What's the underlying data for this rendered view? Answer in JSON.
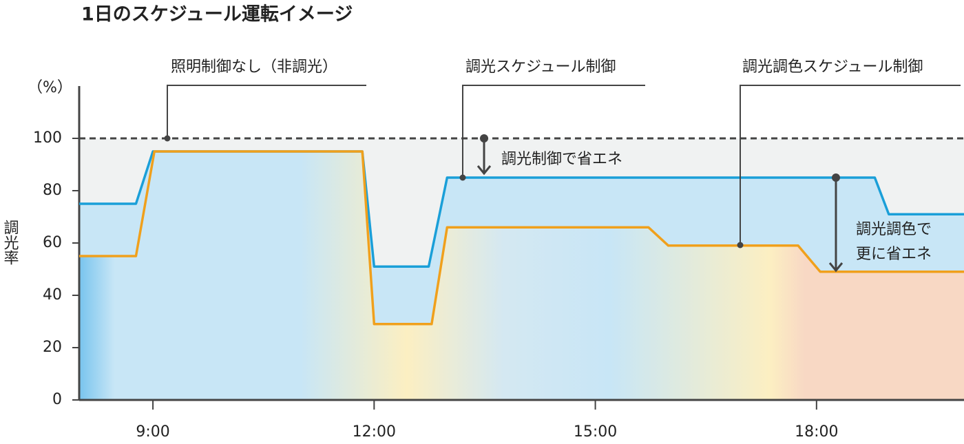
{
  "chart_data": {
    "type": "line",
    "title": "1日のスケジュール運転イメージ",
    "y_label": "調光率",
    "y_unit": "（%）",
    "xlim": [
      8,
      20
    ],
    "xticks": [
      {
        "value": 9,
        "label": "9:00"
      },
      {
        "value": 12,
        "label": "12:00"
      },
      {
        "value": 15,
        "label": "15:00"
      },
      {
        "value": 18,
        "label": "18:00"
      }
    ],
    "ylim": [
      0,
      120
    ],
    "yticks": [
      0,
      20,
      40,
      60,
      80,
      100
    ],
    "reference_line": {
      "name": "照明制御なし（非調光）",
      "value": 100,
      "color": "#444444"
    },
    "series": [
      {
        "name": "調光スケジュール制御",
        "color": "#1a9fd8",
        "x": [
          8,
          8.77,
          9.0,
          11.84,
          12.0,
          12.74,
          12.99,
          18.79,
          18.98,
          20
        ],
        "values": [
          75,
          75,
          95,
          95,
          51,
          51,
          85,
          85,
          71,
          71
        ]
      },
      {
        "name": "調光調色スケジュール制御",
        "color": "#f0a01c",
        "x": [
          8,
          8.77,
          9.02,
          11.84,
          12.0,
          12.78,
          12.99,
          15.72,
          15.99,
          17.75,
          18.05,
          20
        ],
        "values": [
          55,
          55,
          95,
          95,
          29,
          29,
          66,
          66,
          59,
          59,
          49,
          49
        ]
      }
    ],
    "annotations": [
      {
        "lines": [
          "調光制御で省エネ"
        ]
      },
      {
        "lines": [
          "調光調色で",
          "更に省エネ"
        ]
      }
    ]
  }
}
